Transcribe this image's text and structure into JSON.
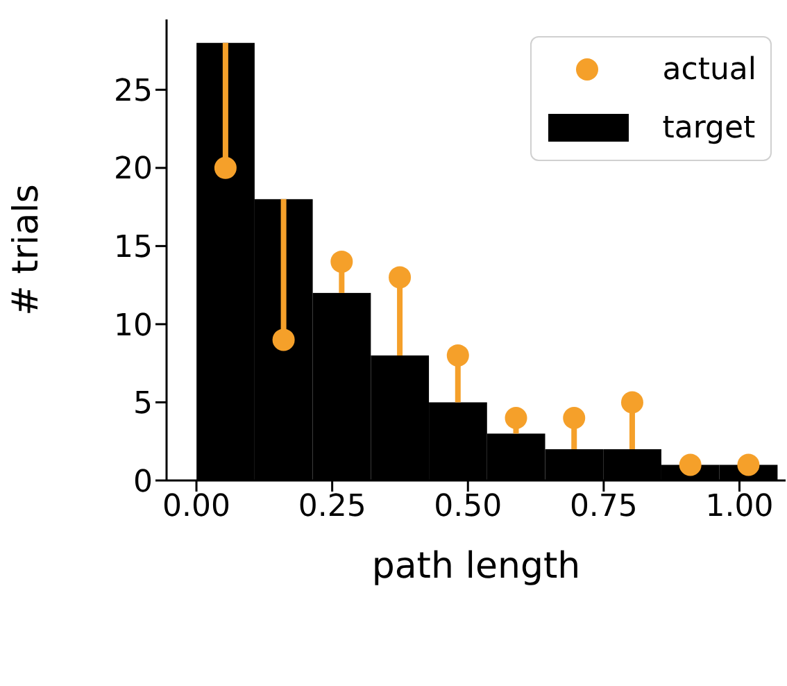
{
  "chart_data": {
    "type": "histogram",
    "xlabel": "path length",
    "ylabel": "# trials",
    "bins": [
      0,
      0.107,
      0.214,
      0.321,
      0.428,
      0.535,
      0.642,
      0.749,
      0.856,
      0.963,
      1.07
    ],
    "series": [
      {
        "name": "actual",
        "type": "scatter",
        "color": "#f5a02a",
        "x": [
          0.0535,
          0.1605,
          0.2675,
          0.3745,
          0.4815,
          0.5885,
          0.6955,
          0.8025,
          0.9095,
          1.0165
        ],
        "values": [
          20,
          9,
          14,
          13,
          8,
          4,
          4,
          5,
          1,
          1
        ],
        "errors": [
          [
            20,
            28
          ],
          [
            9,
            18
          ],
          [
            12,
            14
          ],
          [
            8,
            13
          ],
          [
            5,
            8
          ],
          [
            3,
            4
          ],
          [
            2,
            4
          ],
          [
            2,
            5
          ],
          null,
          null
        ]
      },
      {
        "name": "target",
        "color": "#000000",
        "values": [
          28,
          18,
          12,
          8,
          5,
          3,
          2,
          2,
          1,
          1
        ]
      }
    ],
    "marker": "circle",
    "legend": "top right",
    "grid": false,
    "xlim": [
      -0.055,
      1.085
    ],
    "xticks": [
      {
        "value": 0,
        "label": "0.00"
      },
      {
        "value": 0.25,
        "label": "0.25"
      },
      {
        "value": 0.5,
        "label": "0.50"
      },
      {
        "value": 0.75,
        "label": "0.75"
      },
      {
        "value": 1,
        "label": "1.00"
      }
    ],
    "ylim": [
      0,
      29.5
    ],
    "yticks": [
      0,
      5,
      10,
      15,
      20,
      25
    ]
  }
}
